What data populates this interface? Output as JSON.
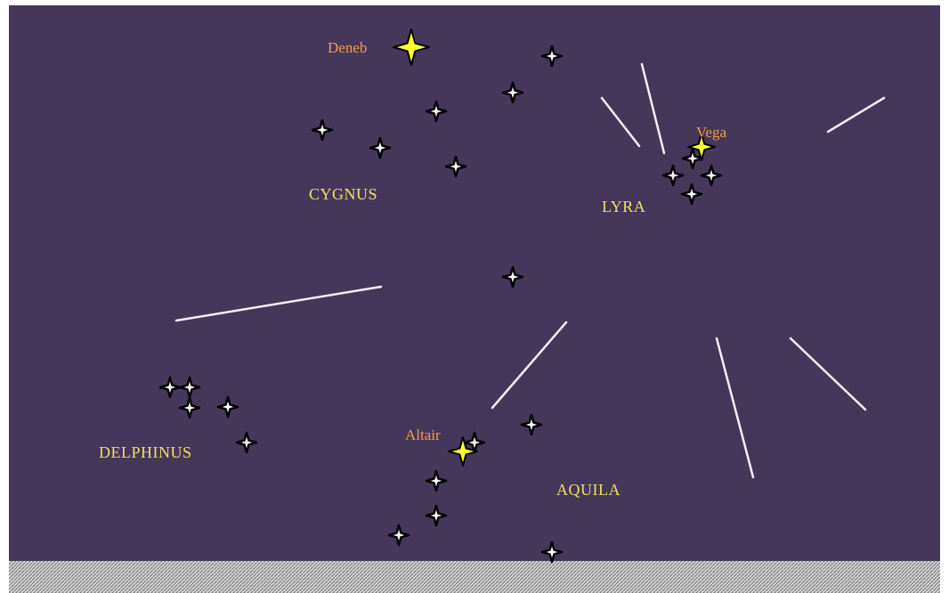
{
  "stars": {
    "deneb": "Deneb",
    "vega": "Vega",
    "altair": "Altair"
  },
  "constellations": {
    "cygnus": "CYGNUS",
    "lyra": "LYRA",
    "delphinus": "DELPHINUS",
    "aquila": "AQUILA"
  }
}
